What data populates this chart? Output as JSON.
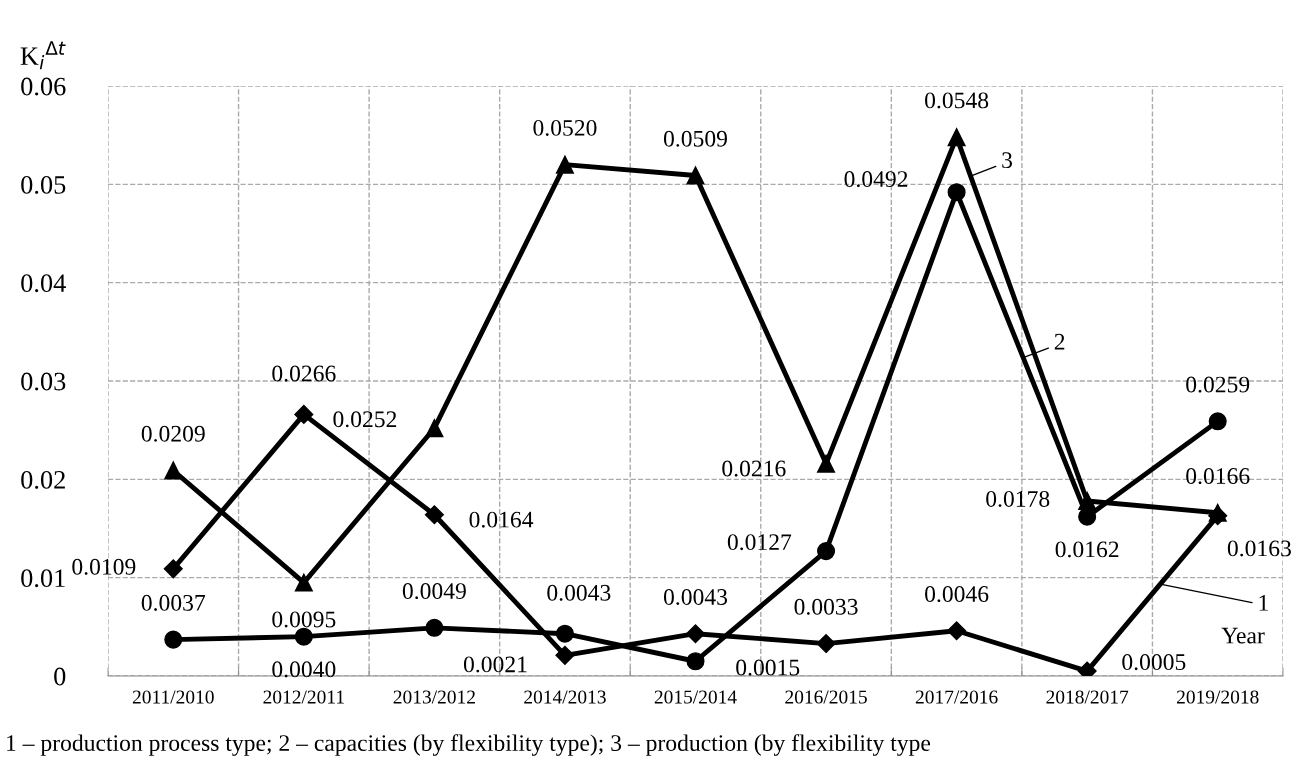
{
  "chart_data": {
    "type": "line",
    "ylabel": "K$_{i}$$^{Δt}$",
    "xlabel": "Year",
    "categories": [
      "2011/2010",
      "2012/2011",
      "2013/2012",
      "2014/2013",
      "2015/2014",
      "2016/2015",
      "2017/2016",
      "2018/2017",
      "2019/2018"
    ],
    "series": [
      {
        "name": "1",
        "color": "#000000",
        "marker": "diamond",
        "values": [
          0.0109,
          0.0266,
          0.0164,
          0.0021,
          0.0043,
          0.0033,
          0.0046,
          0.0005,
          0.0163
        ],
        "value_labels": [
          "0.0109",
          "0.0266",
          "0.0164",
          "0.0021",
          "0.0043",
          "0.0033",
          "0.0046",
          "0.0005",
          "0.0163"
        ]
      },
      {
        "name": "2",
        "color": "#000000",
        "marker": "circle",
        "values": [
          0.0037,
          0.004,
          0.0049,
          0.0043,
          0.0015,
          0.0127,
          0.0492,
          0.0162,
          0.0259
        ],
        "value_labels": [
          "0.0037",
          "0.0040",
          "0.0049",
          "0.0043",
          "0.0015",
          "0.0127",
          "0.0492",
          "0.0162",
          "0.0259"
        ]
      },
      {
        "name": "3",
        "color": "#000000",
        "marker": "triangle",
        "values": [
          0.0209,
          0.0095,
          0.0252,
          0.052,
          0.0509,
          0.0216,
          0.0548,
          0.0178,
          0.0166
        ],
        "value_labels": [
          "0.0209",
          "0.0095",
          "0.0252",
          "0.0520",
          "0.0509",
          "0.0216",
          "0.0548",
          "0.0178",
          "0.0166"
        ]
      }
    ],
    "ylim": [
      0,
      0.06
    ],
    "yticks": [
      0,
      0.01,
      0.02,
      0.03,
      0.04,
      0.05,
      0.06
    ],
    "grid": true,
    "legend": "right",
    "line_style": "solid",
    "annotations": [
      "1 – production process type; 2 – capacities (by flexibility type); 3 – production (by flexibility type"
    ]
  }
}
